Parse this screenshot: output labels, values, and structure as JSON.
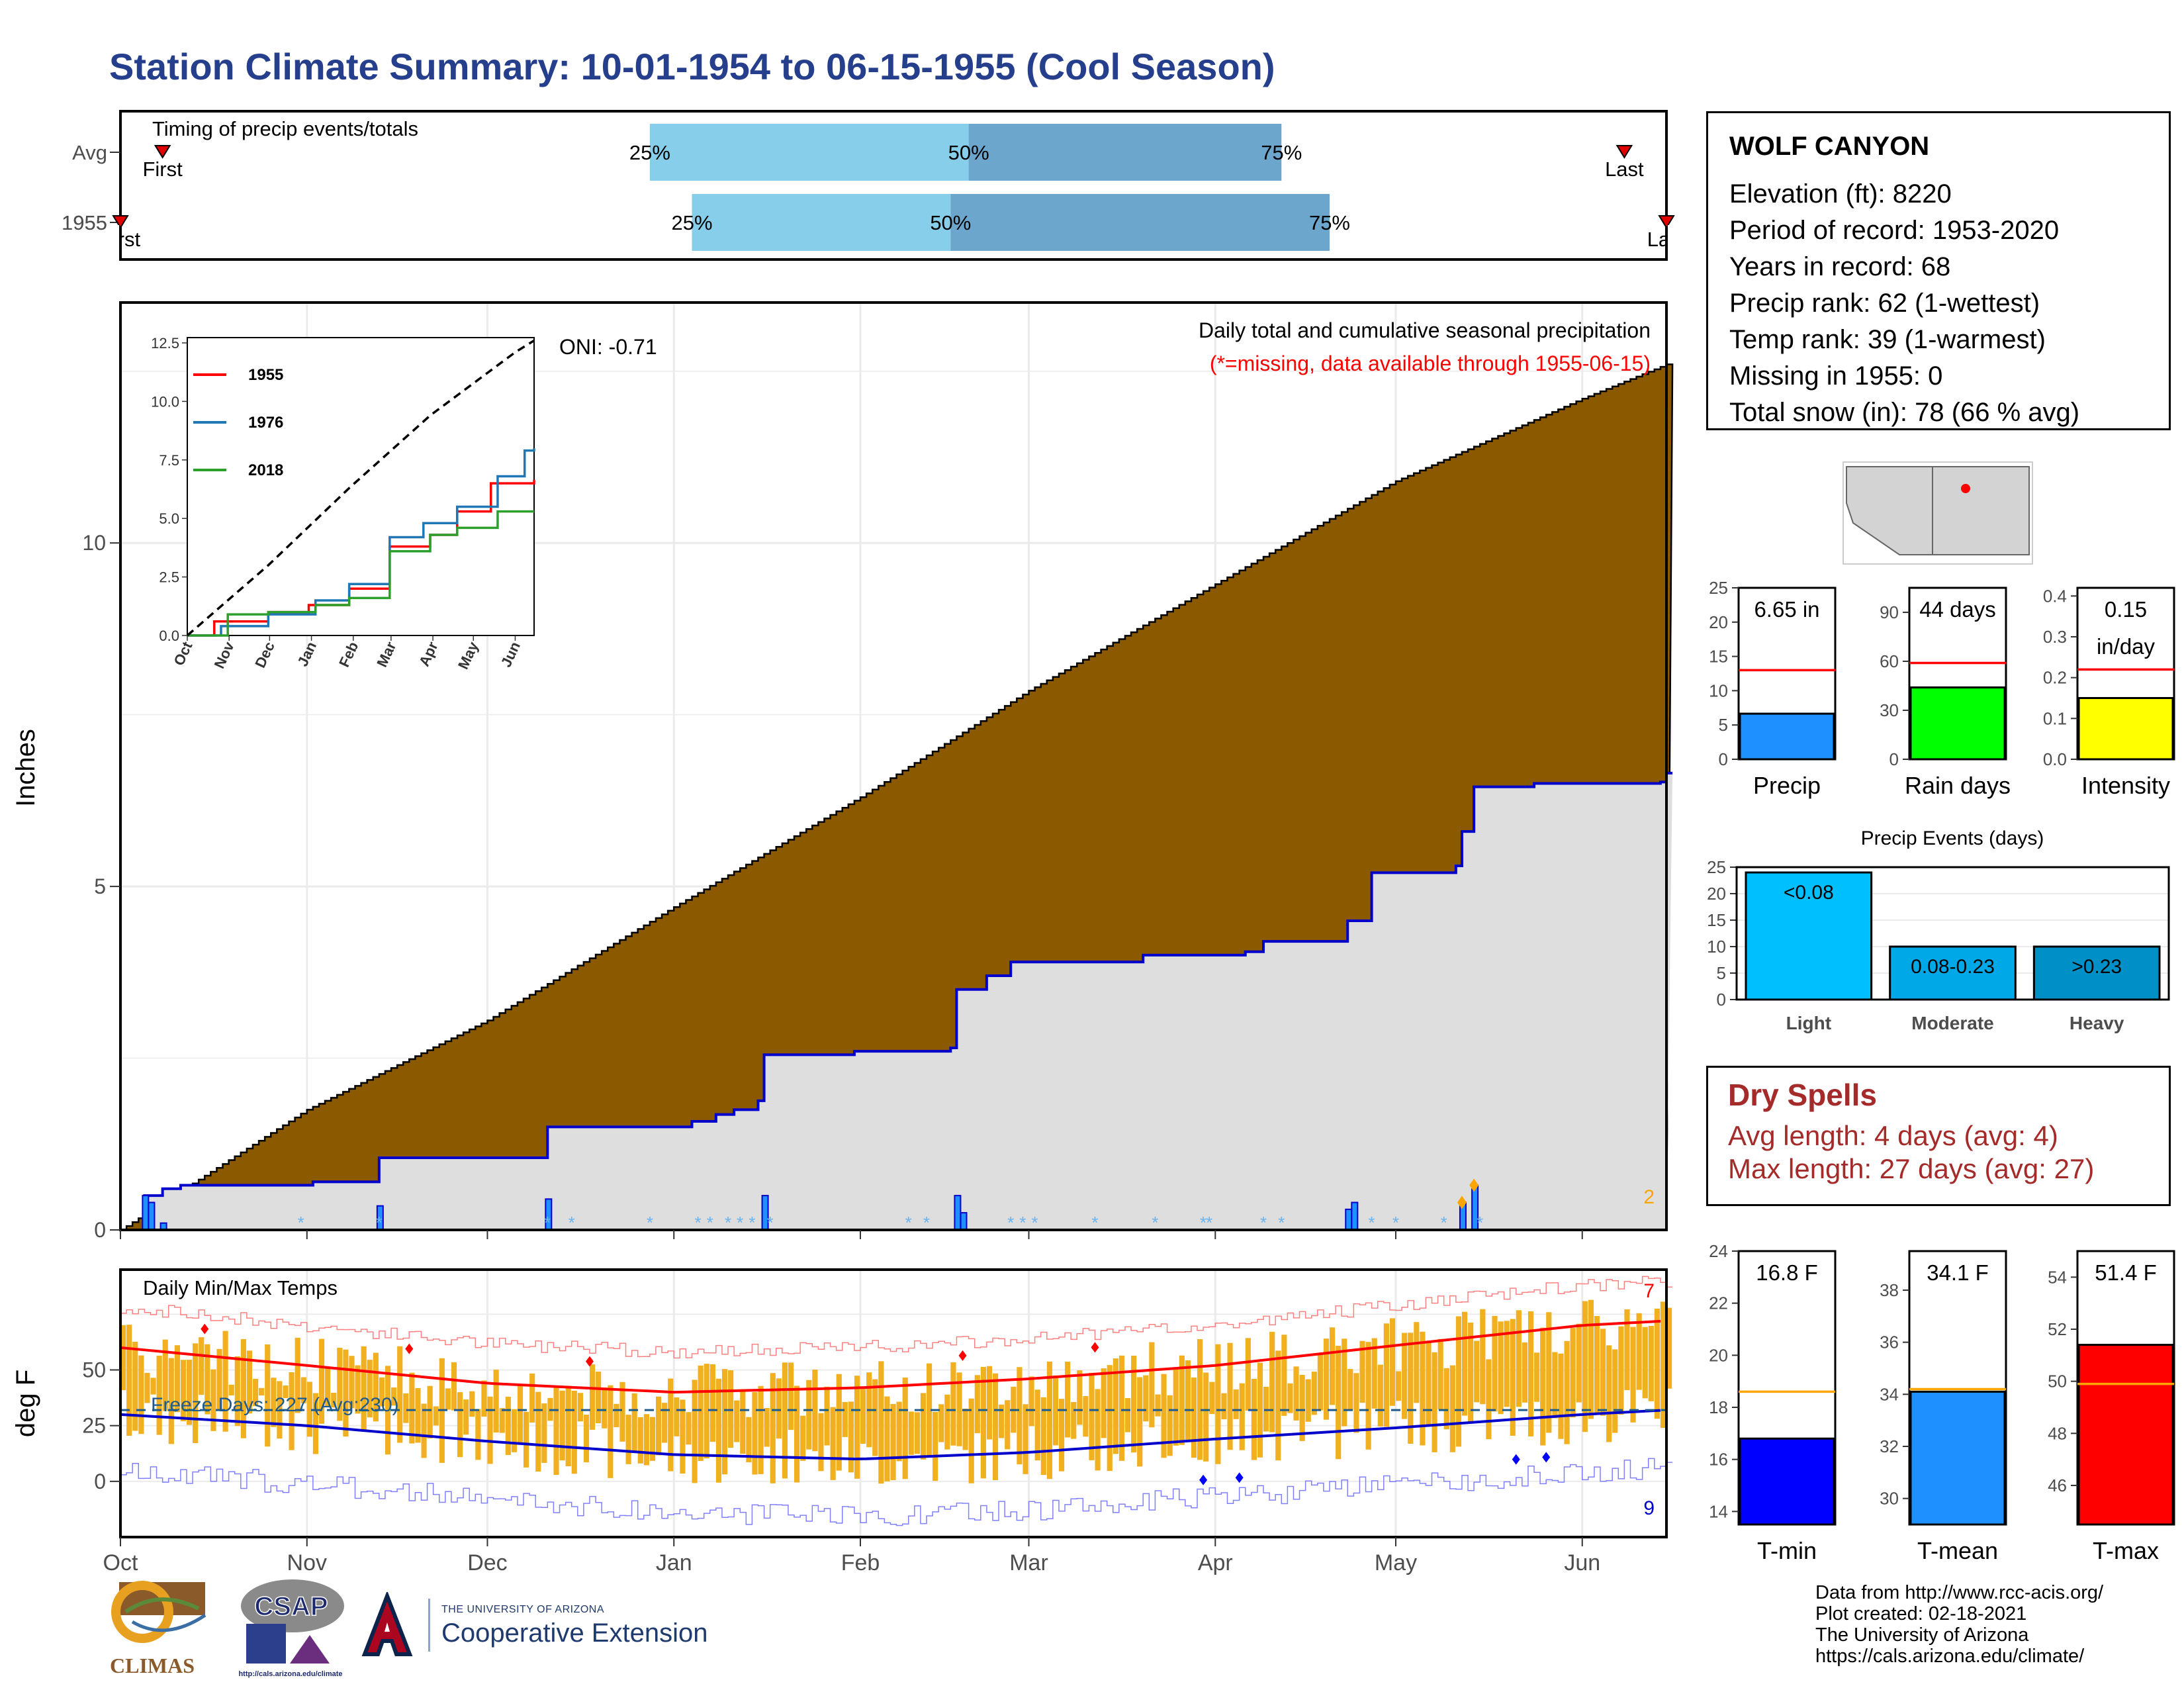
{
  "title": "Station Climate Summary: 10-01-1954 to 06-15-1955 (Cool Season)",
  "station": {
    "name": "WOLF CANYON",
    "lines": [
      "Elevation (ft): 8220",
      "Period of record: 1953-2020",
      "Years in record: 68",
      "Precip rank: 62 (1-wettest)",
      "Temp rank: 39 (1-warmest)",
      "Missing in 1955: 0",
      "Total snow (in): 78 (66 % avg)"
    ]
  },
  "dry_spells": {
    "title": "Dry Spells",
    "avg_line": "Avg length: 4 days (avg: 4)",
    "max_line": "Max length: 27 days (avg: 27)"
  },
  "credits": [
    "Data from http://www.rcc-acis.org/",
    "Plot created: 02-18-2021",
    "The University of Arizona",
    "https://cals.arizona.edu/climate/"
  ],
  "logos": {
    "climas": "CLIMAS",
    "csap": "CSAP",
    "csap_url": "http://cals.arizona.edu/climate",
    "ua_small": "THE UNIVERSITY OF ARIZONA",
    "ua_main": "Cooperative Extension"
  },
  "colors": {
    "title": "#253F8C",
    "cumulative_precip": "#8B5A00",
    "normal_band": "#DEDEDE",
    "snow_line": "#0000CC",
    "tmin": "#0000FF",
    "tmean": "#1E90FF",
    "tmax": "#FF0000",
    "temp_bars": "#F0B020",
    "dry_spells": "#A52A2A",
    "light": "#00BFFF",
    "moderate": "#00A8E8",
    "heavy": "#0090C8",
    "timing_light": "#87CEEB",
    "timing_dark": "#6CA6CD"
  },
  "chart_data": [
    {
      "id": "timing",
      "type": "bar",
      "title": "Timing of precip events/totals",
      "rows": [
        {
          "label": "Avg",
          "first_label": "First",
          "last_label": "Last",
          "first": "1954-10-08",
          "q25": "1954-12-28",
          "q50": "1955-02-19",
          "q75": "1955-04-12",
          "last": "1955-06-08"
        },
        {
          "label": "1955",
          "first_label": "First",
          "last_label": "Last",
          "first": "1954-10-01",
          "q25": "1955-01-04",
          "q50": "1955-02-16",
          "q75": "1955-04-20",
          "last": "1955-06-15"
        }
      ],
      "quantile_labels": [
        "25%",
        "50%",
        "75%"
      ]
    },
    {
      "id": "precip",
      "type": "area",
      "ylabel": "Inches",
      "ylim": [
        0,
        13.5
      ],
      "yticks": [
        0,
        5,
        10
      ],
      "xlabels": [
        "Oct",
        "Nov",
        "Dec",
        "Jan",
        "Feb",
        "Mar",
        "Apr",
        "May",
        "Jun"
      ],
      "annotation_title": "Daily total and cumulative seasonal precipitation",
      "annotation_missing": "(*=missing, data available through 1955-06-15)",
      "oni": "ONI: -0.71",
      "corner_count": "2",
      "avg_cumulative": [
        {
          "day": 0,
          "value": 0.0
        },
        {
          "day": 31,
          "value": 1.75
        },
        {
          "day": 61,
          "value": 3.05
        },
        {
          "day": 92,
          "value": 4.7
        },
        {
          "day": 123,
          "value": 6.3
        },
        {
          "day": 151,
          "value": 7.85
        },
        {
          "day": 182,
          "value": 9.4
        },
        {
          "day": 212,
          "value": 10.9
        },
        {
          "day": 243,
          "value": 12.1
        },
        {
          "day": 257,
          "value": 12.6
        }
      ],
      "observed_cumulative": [
        {
          "day": 0,
          "value": 0.0
        },
        {
          "day": 4,
          "value": 0.5
        },
        {
          "day": 7,
          "value": 0.6
        },
        {
          "day": 10,
          "value": 0.65
        },
        {
          "day": 32,
          "value": 0.7
        },
        {
          "day": 43,
          "value": 1.05
        },
        {
          "day": 70,
          "value": 1.05
        },
        {
          "day": 71,
          "value": 1.5
        },
        {
          "day": 86,
          "value": 1.5
        },
        {
          "day": 95,
          "value": 1.58
        },
        {
          "day": 99,
          "value": 1.68
        },
        {
          "day": 102,
          "value": 1.75
        },
        {
          "day": 106,
          "value": 1.88
        },
        {
          "day": 107,
          "value": 2.55
        },
        {
          "day": 122,
          "value": 2.6
        },
        {
          "day": 138,
          "value": 2.65
        },
        {
          "day": 139,
          "value": 3.5
        },
        {
          "day": 144,
          "value": 3.7
        },
        {
          "day": 148,
          "value": 3.9
        },
        {
          "day": 170,
          "value": 4.0
        },
        {
          "day": 187,
          "value": 4.05
        },
        {
          "day": 190,
          "value": 4.2
        },
        {
          "day": 204,
          "value": 4.5
        },
        {
          "day": 208,
          "value": 5.2
        },
        {
          "day": 222,
          "value": 5.3
        },
        {
          "day": 223,
          "value": 5.8
        },
        {
          "day": 225,
          "value": 6.45
        },
        {
          "day": 235,
          "value": 6.5
        },
        {
          "day": 256,
          "value": 6.52
        },
        {
          "day": 257,
          "value": 6.65
        }
      ],
      "daily_events": [
        {
          "day": 4,
          "value": 0.5
        },
        {
          "day": 5,
          "value": 0.4
        },
        {
          "day": 7,
          "value": 0.1
        },
        {
          "day": 43,
          "value": 0.35
        },
        {
          "day": 71,
          "value": 0.45
        },
        {
          "day": 107,
          "value": 0.5
        },
        {
          "day": 139,
          "value": 0.5
        },
        {
          "day": 140,
          "value": 0.25
        },
        {
          "day": 204,
          "value": 0.3
        },
        {
          "day": 205,
          "value": 0.4
        },
        {
          "day": 223,
          "value": 0.4
        },
        {
          "day": 225,
          "value": 0.65
        }
      ],
      "inset": {
        "type": "line",
        "ylim": [
          0,
          12.5
        ],
        "yticks": [
          0.0,
          2.5,
          5.0,
          7.5,
          10.0,
          12.5
        ],
        "xlabels": [
          "Oct",
          "Nov",
          "Dec",
          "Jan",
          "Feb",
          "Mar",
          "Apr",
          "May",
          "Jun"
        ],
        "series": [
          {
            "name": "1955",
            "color": "#FF0000",
            "points": [
              [
                0,
                0
              ],
              [
                20,
                0.6
              ],
              [
                60,
                1.0
              ],
              [
                90,
                1.3
              ],
              [
                120,
                2.0
              ],
              [
                150,
                3.8
              ],
              [
                180,
                4.3
              ],
              [
                200,
                5.3
              ],
              [
                225,
                6.5
              ],
              [
                257,
                6.65
              ]
            ]
          },
          {
            "name": "1976",
            "color": "#1F77B4",
            "points": [
              [
                0,
                0
              ],
              [
                25,
                0.4
              ],
              [
                60,
                0.9
              ],
              [
                95,
                1.5
              ],
              [
                120,
                2.2
              ],
              [
                150,
                4.2
              ],
              [
                175,
                4.8
              ],
              [
                200,
                5.5
              ],
              [
                230,
                6.8
              ],
              [
                250,
                7.9
              ],
              [
                257,
                8.0
              ]
            ]
          },
          {
            "name": "2018",
            "color": "#2CA02C",
            "points": [
              [
                0,
                0
              ],
              [
                30,
                0.9
              ],
              [
                60,
                1.0
              ],
              [
                95,
                1.3
              ],
              [
                120,
                1.6
              ],
              [
                150,
                3.6
              ],
              [
                180,
                4.3
              ],
              [
                200,
                4.6
              ],
              [
                230,
                5.3
              ],
              [
                257,
                5.3
              ]
            ]
          },
          {
            "name": "",
            "color": "#000000",
            "dashed": true,
            "points": [
              [
                0,
                0
              ],
              [
                60,
                3.0
              ],
              [
                120,
                6.3
              ],
              [
                180,
                9.4
              ],
              [
                243,
                12.1
              ],
              [
                257,
                12.6
              ]
            ]
          }
        ]
      }
    },
    {
      "id": "temps",
      "type": "line",
      "title": "Daily Min/Max Temps",
      "ylabel": "deg F",
      "ylim": [
        -25,
        95
      ],
      "yticks": [
        0,
        25,
        50
      ],
      "xlabels": [
        "Oct",
        "Nov",
        "Dec",
        "Jan",
        "Feb",
        "Mar",
        "Apr",
        "May",
        "Jun"
      ],
      "freeze_label": "Freeze Days: 227 (Avg:230)",
      "freeze_line": 32,
      "record_high_count": "7",
      "record_low_count": "9",
      "avg_max": [
        [
          0,
          60
        ],
        [
          31,
          52
        ],
        [
          61,
          44
        ],
        [
          92,
          40
        ],
        [
          123,
          42
        ],
        [
          151,
          46
        ],
        [
          182,
          52
        ],
        [
          212,
          61
        ],
        [
          243,
          70
        ],
        [
          257,
          72
        ]
      ],
      "avg_min": [
        [
          0,
          30
        ],
        [
          31,
          25
        ],
        [
          61,
          18
        ],
        [
          92,
          12
        ],
        [
          123,
          10
        ],
        [
          151,
          13
        ],
        [
          182,
          19
        ],
        [
          212,
          24
        ],
        [
          243,
          30
        ],
        [
          257,
          32
        ]
      ]
    },
    {
      "id": "summary_precip",
      "type": "bar",
      "bars": [
        {
          "label": "Precip",
          "value": 6.65,
          "value_label": "6.65 in",
          "avg": 13.0,
          "ylim": [
            0,
            25
          ],
          "yticks": [
            0,
            5,
            10,
            15,
            20,
            25
          ],
          "color": "#1E90FF"
        },
        {
          "label": "Rain days",
          "value": 44,
          "value_label": "44 days",
          "avg": 59,
          "ylim": [
            0,
            105
          ],
          "yticks": [
            0,
            30,
            60,
            90
          ],
          "color": "#00FF00"
        },
        {
          "label": "Intensity",
          "value": 0.15,
          "value_label": "0.15 in/day",
          "avg": 0.22,
          "ylim": [
            0,
            0.42
          ],
          "yticks": [
            0.0,
            0.1,
            0.2,
            0.3,
            0.4
          ],
          "color": "#FFFF00"
        }
      ]
    },
    {
      "id": "precip_events",
      "type": "bar",
      "title": "Precip Events (days)",
      "categories": [
        "Light",
        "Moderate",
        "Heavy"
      ],
      "values": [
        24,
        10,
        10
      ],
      "bar_labels": [
        "<0.08",
        "0.08-0.23",
        ">0.23"
      ],
      "ylim": [
        0,
        25
      ],
      "yticks": [
        0,
        5,
        10,
        15,
        20,
        25
      ]
    },
    {
      "id": "summary_temp",
      "type": "bar",
      "bars": [
        {
          "label": "T-min",
          "value": 16.8,
          "value_label": "16.8 F",
          "avg": 18.6,
          "ylim": [
            13.5,
            24
          ],
          "yticks": [
            14,
            16,
            18,
            20,
            22,
            24
          ],
          "color": "#0000FF"
        },
        {
          "label": "T-mean",
          "value": 34.1,
          "value_label": "34.1 F",
          "avg": 34.2,
          "ylim": [
            29,
            39.5
          ],
          "yticks": [
            30,
            32,
            34,
            36,
            38
          ],
          "color": "#1E90FF"
        },
        {
          "label": "T-max",
          "value": 51.4,
          "value_label": "51.4 F",
          "avg": 49.9,
          "ylim": [
            44.5,
            55
          ],
          "yticks": [
            46,
            48,
            50,
            52,
            54
          ],
          "color": "#FF0000"
        }
      ]
    }
  ]
}
